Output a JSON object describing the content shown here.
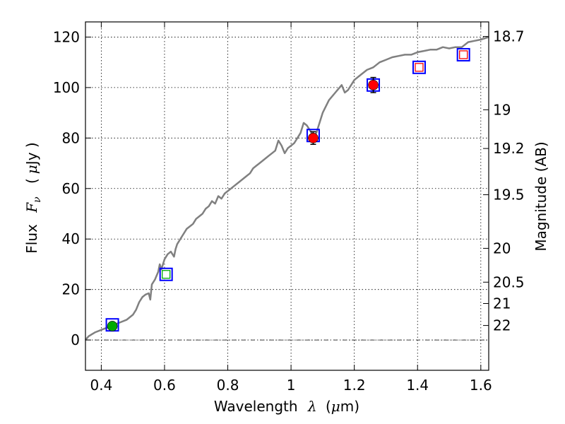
{
  "chart_data": {
    "type": "scatter",
    "xlabel": "Wavelength",
    "xlabel_math": "λ",
    "xlabel_unit_pre": "(",
    "xlabel_unit_mu": "μ",
    "xlabel_unit_post": "m)",
    "ylabel": "Flux",
    "ylabel_math": "F",
    "ylabel_sub": "ν",
    "ylabel_unit_pre": "(",
    "ylabel_unit_mu": "μ",
    "ylabel_unit_post": "Jy )",
    "y2label": "Magnitude (AB)",
    "xlim": [
      0.35,
      1.625
    ],
    "ylim": [
      -12,
      126
    ],
    "x_ticks": [
      0.4,
      0.6,
      0.8,
      1.0,
      1.2,
      1.4,
      1.6
    ],
    "x_tick_labels": [
      "0.4",
      "0.6",
      "0.8",
      "1",
      "1.2",
      "1.4",
      "1.6"
    ],
    "y_ticks": [
      0,
      20,
      40,
      60,
      80,
      100,
      120
    ],
    "y_tick_labels": [
      "0",
      "20",
      "40",
      "60",
      "80",
      "100",
      "120"
    ],
    "mag_ticks": [
      18.7,
      19,
      19.2,
      19.5,
      20,
      20.5,
      21,
      22
    ],
    "mag_tick_labels": [
      "18.7",
      "19",
      "19.2",
      "19.5",
      "20",
      "20.5",
      "21",
      "22"
    ],
    "grid": true,
    "zero_line": true,
    "colors": {
      "spectrum": "#808080",
      "square": "#0000ff",
      "green": "#00aa00",
      "red": "#ff0000",
      "errorbar": "#000000"
    },
    "spectrum": {
      "x": [
        0.35,
        0.36,
        0.38,
        0.4,
        0.42,
        0.44,
        0.46,
        0.48,
        0.49,
        0.5,
        0.51,
        0.52,
        0.53,
        0.54,
        0.55,
        0.555,
        0.56,
        0.57,
        0.58,
        0.585,
        0.59,
        0.6,
        0.61,
        0.62,
        0.63,
        0.635,
        0.64,
        0.65,
        0.66,
        0.67,
        0.68,
        0.69,
        0.7,
        0.71,
        0.72,
        0.73,
        0.74,
        0.75,
        0.76,
        0.77,
        0.78,
        0.79,
        0.8,
        0.81,
        0.82,
        0.83,
        0.84,
        0.85,
        0.86,
        0.87,
        0.88,
        0.89,
        0.9,
        0.91,
        0.92,
        0.93,
        0.94,
        0.95,
        0.96,
        0.97,
        0.98,
        0.99,
        1.0,
        1.01,
        1.02,
        1.03,
        1.04,
        1.05,
        1.06,
        1.07,
        1.08,
        1.1,
        1.12,
        1.14,
        1.16,
        1.17,
        1.18,
        1.2,
        1.22,
        1.24,
        1.26,
        1.28,
        1.3,
        1.32,
        1.34,
        1.36,
        1.38,
        1.4,
        1.42,
        1.44,
        1.46,
        1.48,
        1.5,
        1.52,
        1.54,
        1.56,
        1.58,
        1.6,
        1.625
      ],
      "y": [
        0,
        1.5,
        3,
        4,
        5,
        6,
        7,
        8,
        9,
        10,
        12,
        15,
        17,
        18,
        18.5,
        16,
        22,
        24,
        27,
        30,
        28,
        32,
        34,
        35,
        33,
        36,
        38,
        40,
        42,
        44,
        45,
        46,
        48,
        49,
        50,
        52,
        53,
        55,
        54,
        57,
        56,
        58,
        59,
        60,
        61,
        62,
        63,
        64,
        65,
        66,
        68,
        69,
        70,
        71,
        72,
        73,
        74,
        75,
        79,
        77,
        74,
        76,
        77,
        78,
        80,
        82,
        86,
        85,
        83,
        81,
        82,
        90,
        95,
        98,
        101,
        98,
        99,
        103,
        105,
        107,
        108,
        110,
        111,
        112,
        112.5,
        113,
        113,
        114,
        114.5,
        115,
        115,
        116,
        115.5,
        116,
        116,
        118,
        118.5,
        119,
        120
      ]
    },
    "photometry": [
      {
        "x": 0.435,
        "y": 5.5,
        "marker": "circle",
        "color": "#00aa00",
        "model_y": 6,
        "err": 0
      },
      {
        "x": 0.605,
        "y": 26,
        "marker": "square",
        "color": "#00aa00",
        "model_y": 26,
        "err": 0
      },
      {
        "x": 1.07,
        "y": 80,
        "marker": "circle",
        "color": "#ff0000",
        "model_y": 81,
        "err": 2.5
      },
      {
        "x": 1.26,
        "y": 101,
        "marker": "circle",
        "color": "#ff0000",
        "model_y": 101,
        "err": 3
      },
      {
        "x": 1.405,
        "y": 108,
        "marker": "square",
        "color": "#ff0000",
        "model_y": 108,
        "err": 0
      },
      {
        "x": 1.545,
        "y": 113,
        "marker": "square",
        "color": "#ff0000",
        "model_y": 113,
        "err": 0
      }
    ]
  }
}
